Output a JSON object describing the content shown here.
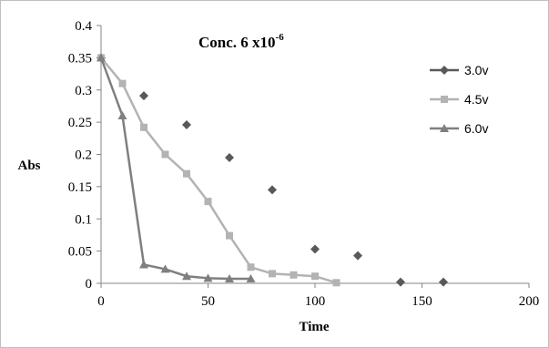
{
  "chart_data": {
    "type": "scatter",
    "title": "Conc. 6 x10",
    "title_superscript": "-6",
    "xlabel": "Time",
    "ylabel": "Abs",
    "xlim": [
      0,
      200
    ],
    "ylim": [
      0,
      0.4
    ],
    "x_ticks": [
      "0",
      "50",
      "100",
      "150",
      "200"
    ],
    "y_ticks": [
      "0",
      "0.05",
      "0.1",
      "0.15",
      "0.2",
      "0.25",
      "0.3",
      "0.35",
      "0.4"
    ],
    "x_tick_values": [
      0,
      50,
      100,
      150,
      200
    ],
    "y_tick_values": [
      0,
      0.05,
      0.1,
      0.15,
      0.2,
      0.25,
      0.3,
      0.35,
      0.4
    ],
    "grid": false,
    "legend_position": "right",
    "series": [
      {
        "name": "3.0v",
        "marker": "diamond",
        "line": false,
        "color": "#595959",
        "points": [
          [
            0,
            0.35
          ],
          [
            20,
            0.291
          ],
          [
            40,
            0.246
          ],
          [
            60,
            0.195
          ],
          [
            80,
            0.145
          ],
          [
            100,
            0.053
          ],
          [
            120,
            0.043
          ],
          [
            140,
            0.002
          ],
          [
            160,
            0.002
          ]
        ]
      },
      {
        "name": "4.5v",
        "marker": "square",
        "line": true,
        "color": "#b3b3b3",
        "points": [
          [
            0,
            0.35
          ],
          [
            10,
            0.31
          ],
          [
            20,
            0.242
          ],
          [
            30,
            0.2
          ],
          [
            40,
            0.17
          ],
          [
            50,
            0.127
          ],
          [
            60,
            0.074
          ],
          [
            70,
            0.025
          ],
          [
            80,
            0.015
          ],
          [
            90,
            0.013
          ],
          [
            100,
            0.011
          ],
          [
            110,
            0.001
          ]
        ]
      },
      {
        "name": "6.0v",
        "marker": "triangle",
        "line": true,
        "color": "#7f7f7f",
        "points": [
          [
            0,
            0.35
          ],
          [
            10,
            0.26
          ],
          [
            20,
            0.029
          ],
          [
            30,
            0.022
          ],
          [
            40,
            0.011
          ],
          [
            50,
            0.008
          ],
          [
            60,
            0.007
          ],
          [
            70,
            0.007
          ]
        ]
      }
    ]
  }
}
